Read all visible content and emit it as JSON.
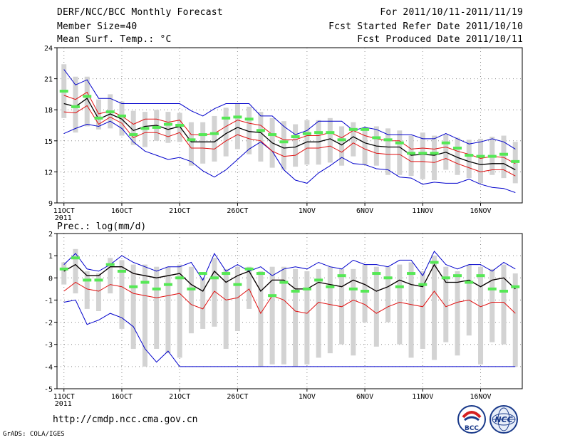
{
  "header": {
    "title": "DERF/NCC/BCC Monthly Forecast",
    "member": "Member Size=40",
    "variable": "Mean Surf. Temp.: °C",
    "period": "For 2011/10/11-2011/11/19",
    "started": "Fcst Started Refer Date 2011/10/10",
    "produced": "Fcst Produced Date 2011/10/11"
  },
  "footer": {
    "url": "http://cmdp.ncc.cma.gov.cn",
    "credit": "GrADS: COLA/IGES",
    "logo_left": "BCC",
    "logo_right": "NCC"
  },
  "colors": {
    "box": "#d3d3d3",
    "mean": "#55e855",
    "median": "#000000",
    "sd": "#e01010",
    "extreme": "#0000cc",
    "grid": "#888888"
  },
  "chart_data": [
    {
      "type": "line",
      "title": "Mean Surf. Temp.: °C",
      "ylabel": "Mean Surf. Temp. (°C)",
      "ylim": [
        9,
        24
      ],
      "yticks": [
        9,
        12,
        15,
        18,
        21,
        24
      ],
      "xlim": [
        10.4,
        50.6
      ],
      "grid": true,
      "xtick_labels": [
        "11OCT",
        "16OCT",
        "21OCT",
        "26OCT",
        "1NOV",
        "6NOV",
        "11NOV",
        "16NOV"
      ],
      "year_label": "2011",
      "x": [
        11,
        12,
        13,
        14,
        15,
        16,
        17,
        18,
        19,
        20,
        21,
        22,
        23,
        24,
        25,
        26,
        27,
        28,
        29,
        30,
        31,
        32,
        33,
        34,
        35,
        36,
        37,
        38,
        39,
        40,
        41,
        42,
        43,
        44,
        45,
        46,
        47,
        48,
        49,
        50
      ],
      "series": [
        {
          "name": "max",
          "values": [
            15.7,
            16.2,
            16.6,
            16.4,
            16.9,
            16.2,
            14.9,
            14.0,
            13.6,
            13.2,
            13.4,
            13.0,
            12.1,
            11.5,
            12.2,
            13.2,
            14.2,
            14.9,
            14.0,
            12.2,
            11.2,
            10.9,
            11.9,
            12.6,
            13.4,
            12.8,
            12.7,
            12.3,
            12.2,
            11.5,
            11.4,
            10.8,
            11.0,
            10.9,
            10.9,
            11.3,
            10.8,
            10.5,
            10.4,
            10.0
          ]
        },
        {
          "name": "upper",
          "values": [
            21.9,
            20.4,
            20.9,
            19.1,
            19.1,
            18.6,
            18.6,
            18.6,
            18.6,
            18.6,
            18.6,
            17.9,
            17.4,
            18.1,
            18.6,
            18.6,
            18.6,
            17.4,
            17.4,
            16.4,
            15.6,
            16.0,
            16.9,
            16.9,
            16.9,
            16.0,
            16.3,
            16.1,
            15.6,
            15.6,
            15.6,
            15.2,
            15.2,
            15.7,
            15.2,
            14.7,
            14.9,
            15.2,
            14.9,
            14.2
          ]
        },
        {
          "name": "plus_sd",
          "values": [
            19.4,
            19.0,
            19.7,
            17.6,
            17.9,
            17.4,
            16.6,
            17.1,
            17.1,
            16.8,
            17.0,
            15.6,
            15.6,
            15.7,
            16.4,
            17.0,
            16.7,
            16.5,
            15.6,
            15.1,
            15.1,
            15.5,
            15.5,
            15.8,
            15.3,
            16.0,
            15.5,
            15.2,
            15.0,
            15.0,
            14.2,
            14.3,
            14.2,
            14.4,
            14.0,
            13.7,
            13.3,
            13.5,
            13.4,
            12.8
          ]
        },
        {
          "name": "median",
          "values": [
            18.6,
            18.3,
            19.1,
            17.1,
            17.6,
            17.1,
            16.0,
            16.4,
            16.5,
            16.1,
            16.4,
            14.9,
            14.9,
            14.9,
            15.7,
            16.3,
            15.9,
            15.8,
            14.8,
            14.3,
            14.4,
            14.9,
            14.9,
            15.2,
            14.6,
            15.4,
            14.8,
            14.5,
            14.4,
            14.4,
            13.6,
            13.7,
            13.6,
            13.9,
            13.4,
            13.0,
            12.7,
            12.8,
            12.8,
            12.2
          ]
        },
        {
          "name": "minus_sd",
          "values": [
            17.8,
            17.7,
            18.4,
            16.6,
            17.3,
            16.7,
            15.3,
            15.8,
            15.8,
            15.4,
            15.8,
            14.3,
            14.3,
            14.2,
            15.0,
            15.6,
            15.2,
            15.0,
            14.0,
            13.5,
            13.6,
            14.3,
            14.3,
            14.5,
            13.9,
            14.8,
            14.2,
            13.8,
            13.7,
            13.7,
            13.0,
            13.0,
            12.9,
            13.3,
            12.8,
            12.4,
            12.0,
            12.2,
            12.2,
            11.6
          ]
        },
        {
          "name": "box_top",
          "values": [
            22.4,
            21.2,
            21.2,
            19.0,
            19.5,
            18.8,
            17.9,
            17.8,
            18.0,
            17.8,
            17.7,
            16.8,
            16.8,
            17.4,
            18.2,
            18.6,
            18.3,
            17.8,
            17.2,
            16.9,
            16.6,
            17.0,
            17.0,
            17.2,
            16.4,
            16.8,
            16.3,
            16.4,
            16.2,
            16.0,
            15.5,
            15.8,
            15.5,
            15.6,
            15.3,
            15.1,
            15.2,
            15.4,
            15.5,
            14.9
          ]
        },
        {
          "name": "box_bottom",
          "values": [
            17.2,
            15.8,
            16.4,
            16.1,
            16.2,
            15.5,
            14.6,
            14.4,
            15.0,
            14.8,
            14.9,
            12.6,
            12.8,
            13.0,
            13.5,
            14.2,
            13.7,
            13.0,
            12.4,
            12.2,
            12.5,
            12.7,
            12.7,
            12.9,
            12.6,
            13.5,
            12.7,
            12.6,
            11.7,
            11.7,
            11.6,
            11.3,
            11.2,
            12.2,
            11.7,
            11.4,
            10.9,
            11.7,
            11.4,
            10.9
          ]
        },
        {
          "name": "mean",
          "values": [
            19.8,
            18.3,
            19.3,
            17.2,
            17.8,
            17.4,
            15.6,
            16.2,
            16.3,
            16.6,
            16.5,
            15.1,
            15.6,
            15.7,
            17.2,
            17.3,
            17.1,
            16.0,
            15.6,
            14.9,
            15.4,
            15.7,
            15.8,
            15.8,
            15.1,
            16.1,
            16.1,
            15.3,
            15.1,
            14.8,
            13.8,
            13.8,
            13.8,
            14.8,
            14.3,
            13.6,
            13.5,
            13.5,
            13.7,
            13.0
          ]
        }
      ]
    },
    {
      "type": "line",
      "title": "Prec.: log(mm/d)",
      "ylabel": "Prec. log(mm/d)",
      "ylim": [
        -5,
        2
      ],
      "yticks": [
        -5,
        -4,
        -3,
        -2,
        -1,
        0,
        1,
        2
      ],
      "xlim": [
        10.4,
        50.6
      ],
      "grid": true,
      "xtick_labels": [
        "11OCT",
        "16OCT",
        "21OCT",
        "26OCT",
        "1NOV",
        "6NOV",
        "11NOV",
        "16NOV"
      ],
      "year_label": "2011",
      "x": [
        11,
        12,
        13,
        14,
        15,
        16,
        17,
        18,
        19,
        20,
        21,
        22,
        23,
        24,
        25,
        26,
        27,
        28,
        29,
        30,
        31,
        32,
        33,
        34,
        35,
        36,
        37,
        38,
        39,
        40,
        41,
        42,
        43,
        44,
        45,
        46,
        47,
        48,
        49,
        50
      ],
      "series": [
        {
          "name": "lower",
          "values": [
            -1.1,
            -1.0,
            -2.1,
            -1.9,
            -1.6,
            -1.8,
            -2.2,
            -3.2,
            -3.8,
            -3.3,
            -4.0,
            -4.0,
            -4.0,
            -4.0,
            -4.0,
            -4.0,
            -4.0,
            -4.0,
            -4.0,
            -4.0,
            -4.0,
            -4.0,
            -4.0,
            -4.0,
            -4.0,
            -4.0,
            -4.0,
            -4.0,
            -4.0,
            -4.0,
            -4.0,
            -4.0,
            -4.0,
            -4.0,
            -4.0,
            -4.0,
            -4.0,
            -4.0,
            -4.0,
            -4.0
          ]
        },
        {
          "name": "upper",
          "values": [
            0.6,
            1.1,
            0.4,
            0.3,
            0.6,
            1.0,
            0.7,
            0.5,
            0.3,
            0.5,
            0.5,
            0.7,
            -0.1,
            1.1,
            0.3,
            0.6,
            0.3,
            0.5,
            0.1,
            0.4,
            0.5,
            0.4,
            0.7,
            0.5,
            0.4,
            0.8,
            0.6,
            0.6,
            0.5,
            0.8,
            0.8,
            0.1,
            1.2,
            0.6,
            0.4,
            0.6,
            0.6,
            0.3,
            0.7,
            0.4
          ]
        },
        {
          "name": "plus_sd",
          "values": [
            0.3,
            0.6,
            0.1,
            0.1,
            0.5,
            0.5,
            0.2,
            0.1,
            0.0,
            0.1,
            0.2,
            -0.3,
            -0.6,
            0.3,
            -0.2,
            0.1,
            0.3,
            -0.6,
            -0.1,
            -0.1,
            -0.5,
            -0.5,
            -0.2,
            -0.3,
            -0.4,
            -0.1,
            -0.3,
            -0.6,
            -0.4,
            -0.1,
            -0.3,
            -0.4,
            0.6,
            -0.2,
            -0.2,
            -0.1,
            -0.4,
            -0.1,
            0.0,
            -0.5
          ]
        },
        {
          "name": "median",
          "values": [
            0.3,
            0.6,
            0.1,
            0.1,
            0.5,
            0.5,
            0.2,
            0.1,
            0.0,
            0.1,
            0.2,
            -0.3,
            -0.6,
            0.3,
            -0.2,
            0.1,
            0.3,
            -0.6,
            -0.1,
            -0.1,
            -0.5,
            -0.5,
            -0.2,
            -0.3,
            -0.4,
            -0.1,
            -0.3,
            -0.6,
            -0.4,
            -0.1,
            -0.3,
            -0.4,
            0.6,
            -0.2,
            -0.2,
            -0.1,
            -0.4,
            -0.1,
            0.0,
            -0.5
          ]
        },
        {
          "name": "minus_sd",
          "values": [
            -0.6,
            -0.2,
            -0.5,
            -0.6,
            -0.3,
            -0.4,
            -0.7,
            -0.8,
            -0.9,
            -0.8,
            -0.7,
            -1.2,
            -1.4,
            -0.6,
            -1.0,
            -0.9,
            -0.5,
            -1.6,
            -0.8,
            -1.0,
            -1.5,
            -1.6,
            -1.1,
            -1.2,
            -1.3,
            -1.0,
            -1.2,
            -1.6,
            -1.3,
            -1.1,
            -1.2,
            -1.3,
            -0.6,
            -1.3,
            -1.1,
            -1.0,
            -1.3,
            -1.1,
            -1.1,
            -1.6
          ]
        },
        {
          "name": "box_top",
          "values": [
            0.7,
            1.3,
            0.3,
            0.2,
            0.9,
            0.8,
            0.6,
            0.6,
            0.5,
            0.5,
            0.6,
            0.5,
            0.0,
            0.9,
            0.4,
            0.5,
            0.5,
            0.3,
            0.5,
            0.5,
            0.4,
            0.3,
            0.4,
            0.5,
            0.4,
            0.4,
            0.6,
            0.5,
            0.5,
            0.6,
            0.7,
            0.3,
            1.0,
            0.5,
            0.3,
            0.6,
            0.5,
            0.4,
            0.6,
            0.2
          ]
        },
        {
          "name": "box_bottom",
          "values": [
            -0.3,
            -0.7,
            -1.4,
            -1.5,
            -0.7,
            -2.3,
            -3.2,
            -4.0,
            -3.2,
            -3.4,
            -3.6,
            -2.5,
            -2.3,
            -2.2,
            -3.2,
            -2.4,
            -1.4,
            -4.0,
            -3.9,
            -3.9,
            -4.0,
            -3.9,
            -3.6,
            -3.4,
            -3.0,
            -3.5,
            -2.0,
            -3.1,
            -2.0,
            -3.0,
            -3.6,
            -3.2,
            -3.7,
            -2.9,
            -3.5,
            -2.6,
            -3.9,
            -2.9,
            -3.0,
            -4.0
          ]
        },
        {
          "name": "mean",
          "values": [
            0.4,
            0.9,
            -0.1,
            -0.1,
            0.6,
            0.3,
            -0.4,
            -0.2,
            -0.5,
            -0.3,
            0.0,
            -0.5,
            0.2,
            0.0,
            0.2,
            -0.3,
            0.4,
            0.2,
            -0.8,
            -0.2,
            -0.6,
            -0.5,
            -0.1,
            -0.4,
            0.1,
            -0.5,
            -0.6,
            0.2,
            0.0,
            -0.4,
            0.2,
            -0.3,
            0.7,
            0.0,
            0.1,
            -0.2,
            0.1,
            -0.5,
            -0.6,
            -0.4
          ]
        }
      ]
    }
  ]
}
